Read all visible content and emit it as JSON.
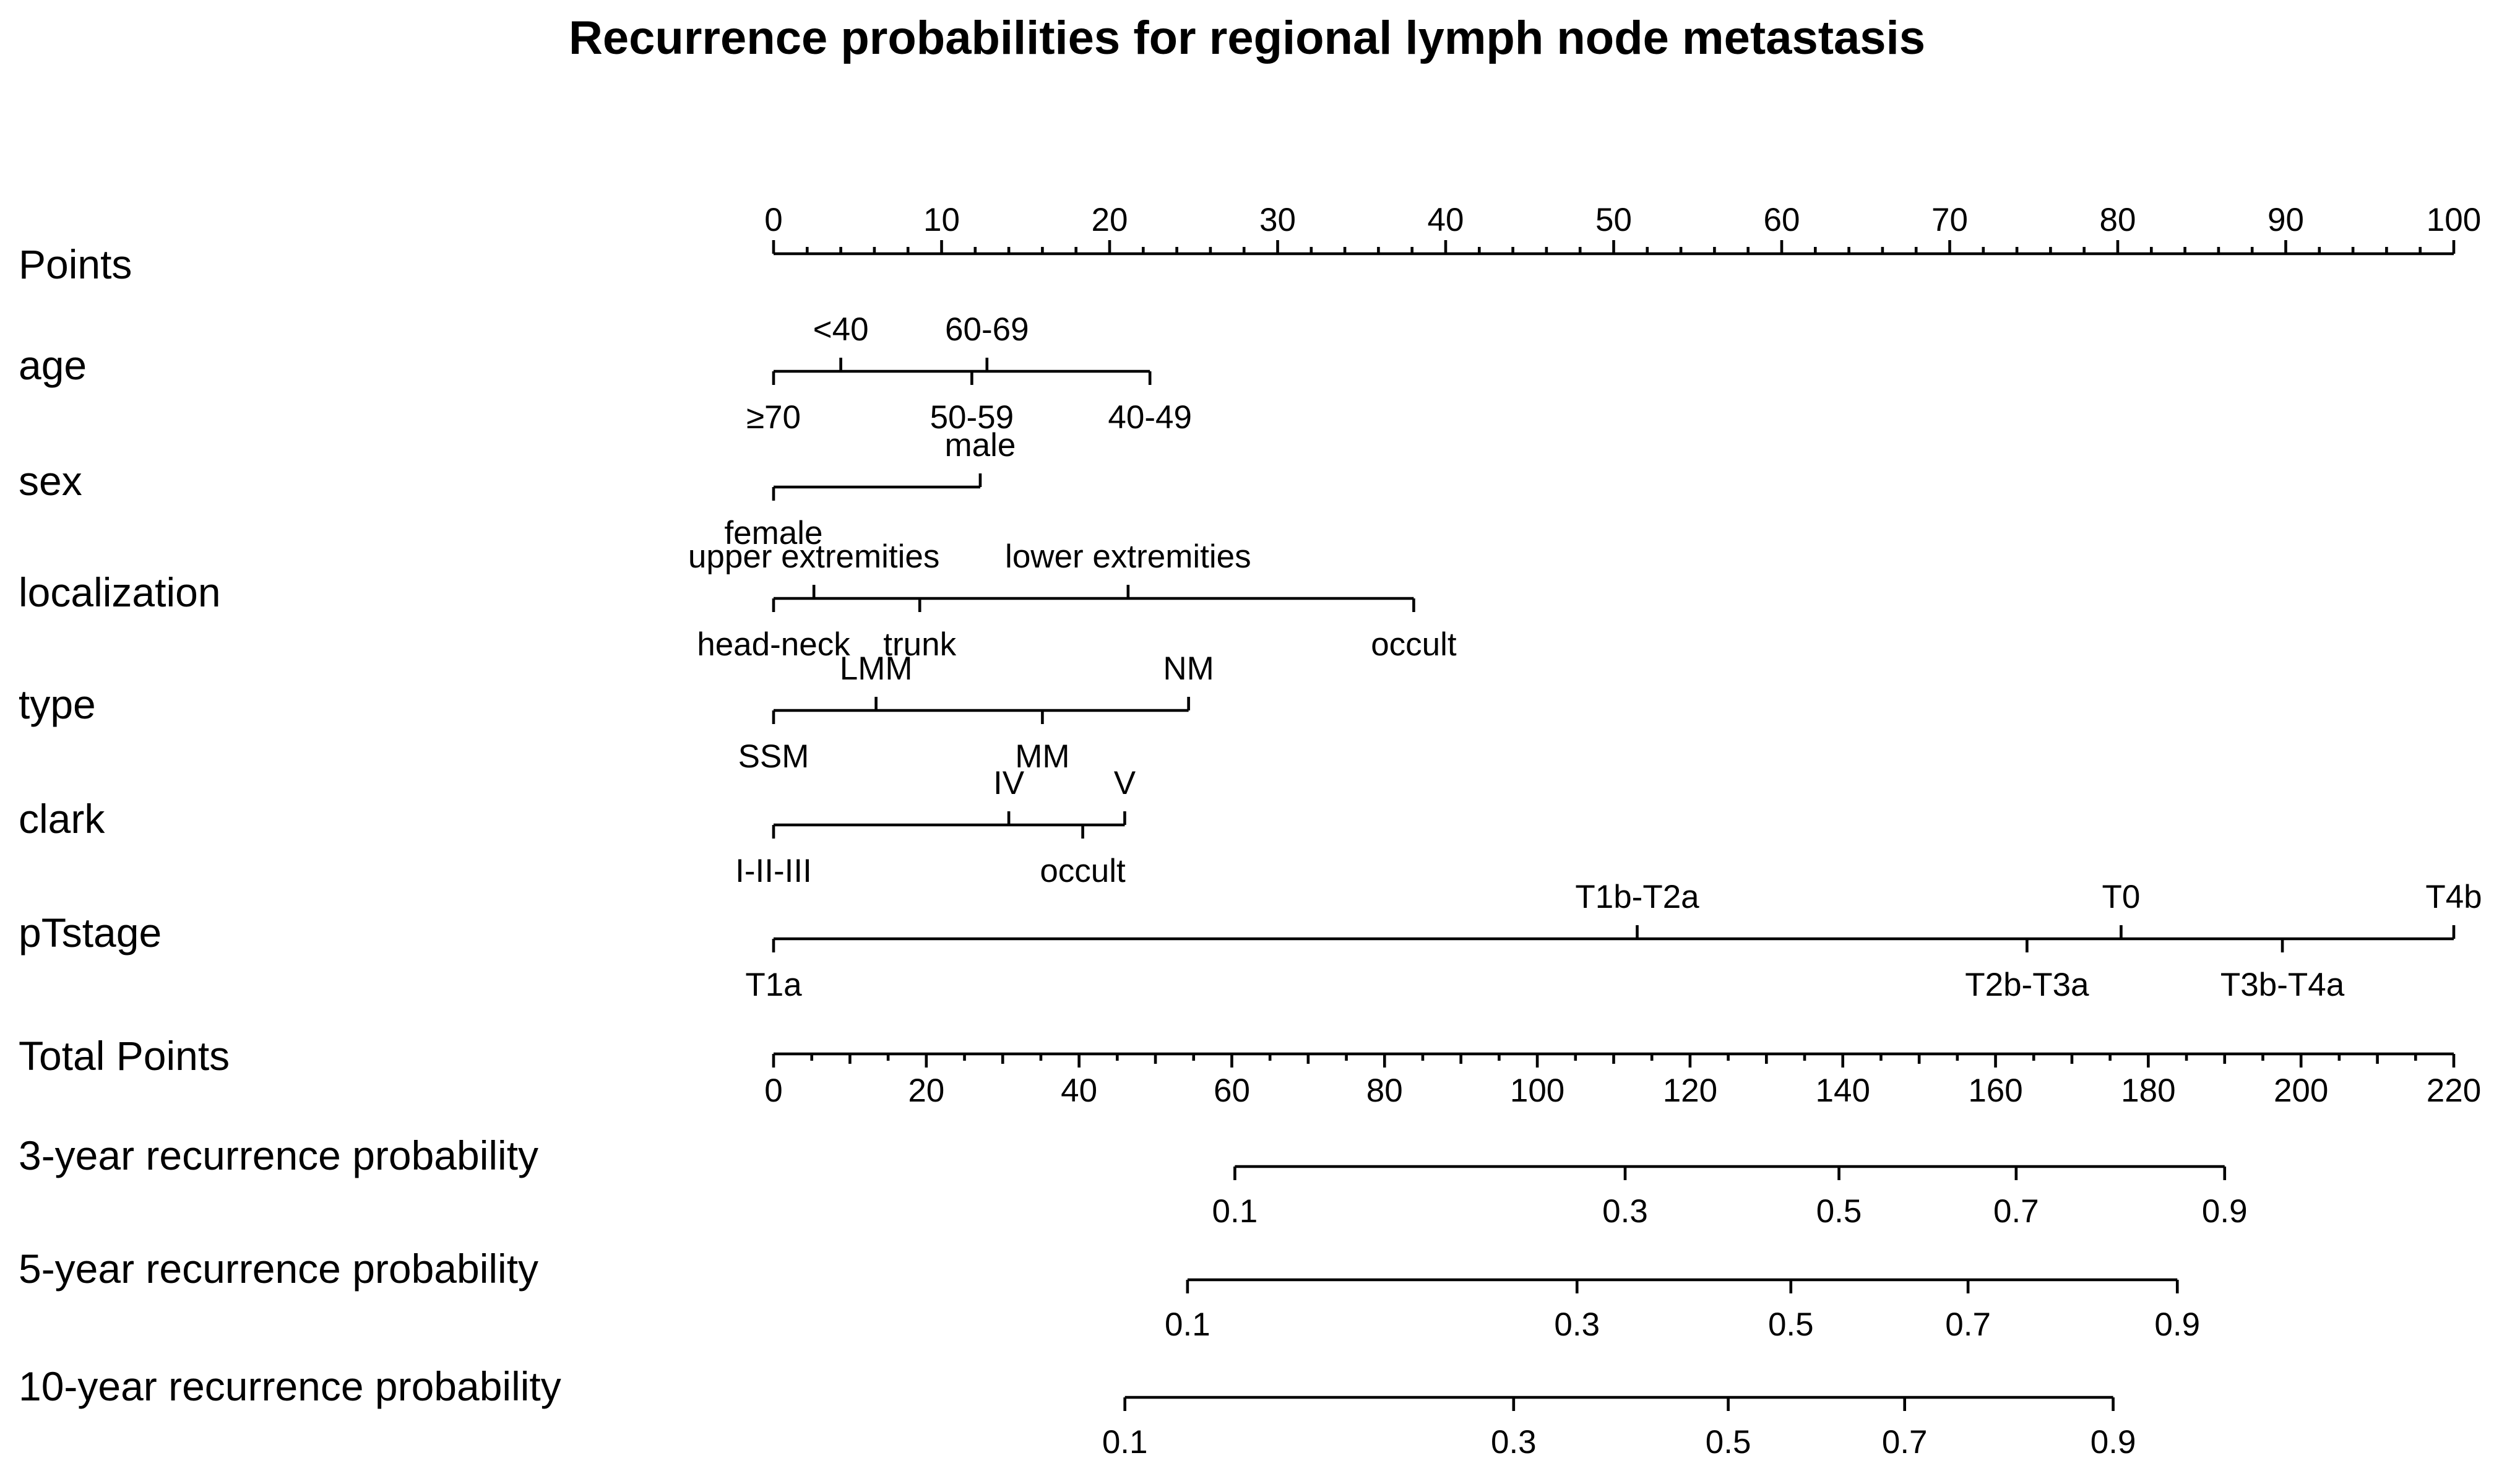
{
  "chart_data": {
    "type": "nomogram",
    "title": "Recurrence probabilities for regional lymph node metastasis",
    "rows": [
      {
        "id": "points",
        "label": "Points",
        "kind": "scale",
        "min": 0,
        "max": 100,
        "labeled": [
          0,
          10,
          20,
          30,
          40,
          50,
          60,
          70,
          80,
          90,
          100
        ],
        "minor_step": 2,
        "mid_step": 5
      },
      {
        "id": "age",
        "label": "age",
        "kind": "variable",
        "points": [
          {
            "label": "≥70",
            "value": 0,
            "side": "below"
          },
          {
            "label": "<40",
            "value": 4,
            "side": "above"
          },
          {
            "label": "50-59",
            "value": 11.8,
            "side": "below"
          },
          {
            "label": "60-69",
            "value": 12.7,
            "side": "above"
          },
          {
            "label": "40-49",
            "value": 22.4,
            "side": "below"
          }
        ]
      },
      {
        "id": "sex",
        "label": "sex",
        "kind": "variable",
        "points": [
          {
            "label": "female",
            "value": 0,
            "side": "below"
          },
          {
            "label": "male",
            "value": 12.3,
            "side": "above"
          }
        ]
      },
      {
        "id": "localization",
        "label": "localization",
        "kind": "variable",
        "points": [
          {
            "label": "head-neck",
            "value": 0,
            "side": "below"
          },
          {
            "label": "upper extremities",
            "value": 2.4,
            "side": "above"
          },
          {
            "label": "trunk",
            "value": 8.7,
            "side": "below"
          },
          {
            "label": "lower extremities",
            "value": 21.1,
            "side": "above"
          },
          {
            "label": "occult",
            "value": 38.1,
            "side": "below"
          }
        ]
      },
      {
        "id": "type",
        "label": "type",
        "kind": "variable",
        "points": [
          {
            "label": "SSM",
            "value": 0,
            "side": "below"
          },
          {
            "label": "LMM",
            "value": 6.1,
            "side": "above"
          },
          {
            "label": "MM",
            "value": 16.0,
            "side": "below"
          },
          {
            "label": "NM",
            "value": 24.7,
            "side": "above"
          }
        ]
      },
      {
        "id": "clark",
        "label": "clark",
        "kind": "variable",
        "points": [
          {
            "label": "I-II-III",
            "value": 0,
            "side": "below"
          },
          {
            "label": "IV",
            "value": 14.0,
            "side": "above"
          },
          {
            "label": "occult",
            "value": 18.4,
            "side": "below"
          },
          {
            "label": "V",
            "value": 20.9,
            "side": "above"
          }
        ]
      },
      {
        "id": "pTstage",
        "label": "pTstage",
        "kind": "variable",
        "points": [
          {
            "label": "T1a",
            "value": 0,
            "side": "below"
          },
          {
            "label": "T1b-T2a",
            "value": 51.4,
            "side": "above"
          },
          {
            "label": "T2b-T3a",
            "value": 74.6,
            "side": "below"
          },
          {
            "label": "T0",
            "value": 80.2,
            "side": "above"
          },
          {
            "label": "T3b-T4a",
            "value": 89.8,
            "side": "below"
          },
          {
            "label": "T4b",
            "value": 100,
            "side": "above"
          }
        ]
      },
      {
        "id": "total",
        "label": "Total Points",
        "kind": "scale",
        "min": 0,
        "max": 220,
        "labeled": [
          0,
          20,
          40,
          60,
          80,
          100,
          120,
          140,
          160,
          180,
          200,
          220
        ],
        "minor_step": 5,
        "mid_step": 10
      },
      {
        "id": "p3",
        "label": "3-year recurrence probability",
        "kind": "probability",
        "ticks": [
          {
            "label": "0.1",
            "total": 60.4
          },
          {
            "label": "0.3",
            "total": 111.5
          },
          {
            "label": "0.5",
            "total": 139.5
          },
          {
            "label": "0.7",
            "total": 162.7
          },
          {
            "label": "0.9",
            "total": 190.0
          }
        ]
      },
      {
        "id": "p5",
        "label": "5-year recurrence probability",
        "kind": "probability",
        "ticks": [
          {
            "label": "0.1",
            "total": 54.2
          },
          {
            "label": "0.3",
            "total": 105.2
          },
          {
            "label": "0.5",
            "total": 133.2
          },
          {
            "label": "0.7",
            "total": 156.4
          },
          {
            "label": "0.9",
            "total": 183.8
          }
        ]
      },
      {
        "id": "p10",
        "label": "10-year recurrence probability",
        "kind": "probability",
        "ticks": [
          {
            "label": "0.1",
            "total": 46.0
          },
          {
            "label": "0.3",
            "total": 96.9
          },
          {
            "label": "0.5",
            "total": 125.0
          },
          {
            "label": "0.7",
            "total": 148.1
          },
          {
            "label": "0.9",
            "total": 175.4
          }
        ]
      }
    ]
  }
}
